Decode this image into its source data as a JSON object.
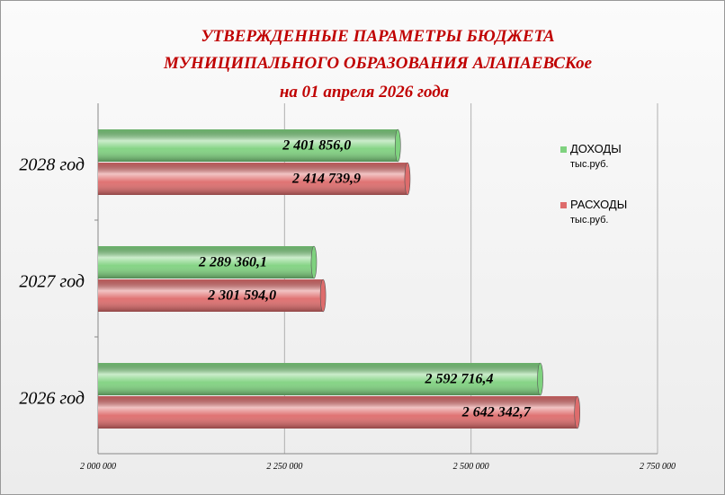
{
  "chart_data": {
    "type": "bar",
    "orientation": "horizontal",
    "title": [
      "УТВЕРЖДЕННЫЕ  ПАРАМЕТРЫ БЮДЖЕТА",
      "МУНИЦИПАЛЬНОГО  ОБРАЗОВАНИЯ  АЛАПАЕВСКое"
    ],
    "subtitle": "на 01 апреля 2026 года",
    "categories": [
      "2028 год",
      "2027 год",
      "2026 год"
    ],
    "series": [
      {
        "name": "ДОХОДЫ",
        "unit": "тыс.руб.",
        "color": "#7fd27f",
        "values": [
          2401856.0,
          2289360.1,
          2592716.4
        ],
        "value_labels": [
          "2 401 856,0",
          "2 289 360,1",
          "2 592 716,4"
        ]
      },
      {
        "name": "РАСХОДЫ",
        "unit": "тыс.руб.",
        "color": "#de6c6c",
        "values": [
          2414739.9,
          2301594.0,
          2642342.7
        ],
        "value_labels": [
          "2 414 739,9",
          "2 301 594,0",
          "2 642 342,7"
        ]
      }
    ],
    "xlim": [
      2000000,
      2750000
    ],
    "xticks": [
      {
        "value": 2000000,
        "label": "2 000 000"
      },
      {
        "value": 2250000,
        "label": "2 250 000"
      },
      {
        "value": 2500000,
        "label": "2 500 000"
      },
      {
        "value": 2750000,
        "label": "2 750 000"
      }
    ],
    "grid": true
  }
}
